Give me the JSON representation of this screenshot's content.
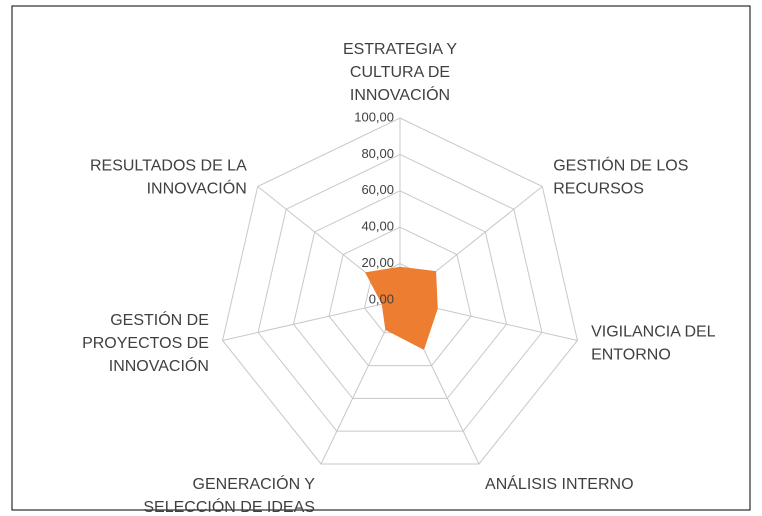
{
  "chart_data": {
    "type": "radar",
    "categories": [
      [
        "ESTRATEGIA Y",
        "CULTURA DE",
        "INNOVACIÓN"
      ],
      [
        "GESTIÓN DE LOS",
        "RECURSOS"
      ],
      [
        "VIGILANCIA DEL",
        "ENTORNO"
      ],
      [
        "ANÁLISIS INTERNO"
      ],
      [
        "GENERACIÓN Y",
        "SELECCIÓN DE IDEAS"
      ],
      [
        "GESTIÓN DE",
        "PROYECTOS DE",
        "INNOVACIÓN"
      ],
      [
        "RESULTADOS DE LA",
        "INNOVACIÓN"
      ]
    ],
    "values": [
      18,
      25,
      21,
      30,
      18,
      10,
      24
    ],
    "color": "#ed7d31",
    "ylim": [
      0,
      100
    ],
    "yticks": [
      {
        "value": 0,
        "label": "0,00"
      },
      {
        "value": 20,
        "label": "20,00"
      },
      {
        "value": 40,
        "label": "40,00"
      },
      {
        "value": 60,
        "label": "60,00"
      },
      {
        "value": 80,
        "label": "80,00"
      },
      {
        "value": 100,
        "label": "100,00"
      }
    ],
    "grid": true
  }
}
